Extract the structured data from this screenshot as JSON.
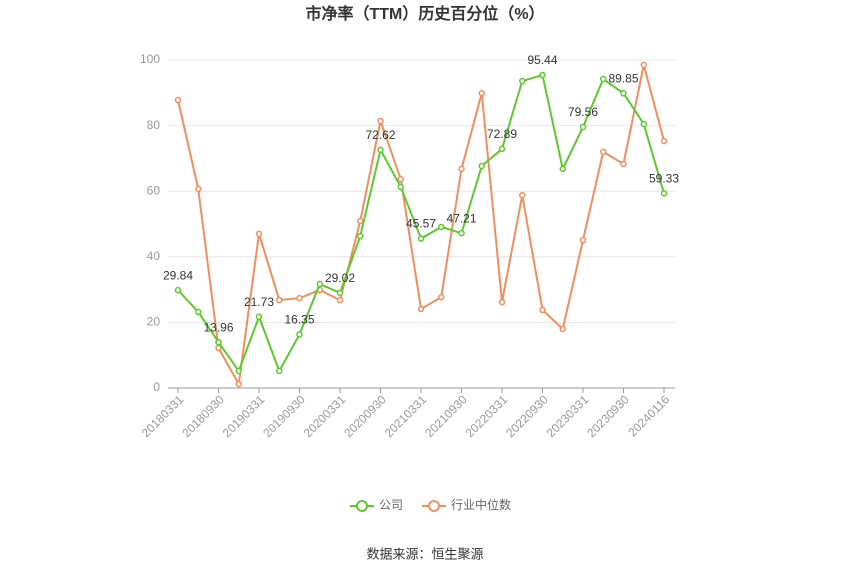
{
  "chart_data": {
    "type": "line",
    "title": "市净率（TTM）历史百分位（%）",
    "categories": [
      "20180331",
      null,
      "20180930",
      null,
      "20190331",
      null,
      "20190930",
      null,
      "20200331",
      null,
      "20200930",
      null,
      "20210331",
      null,
      "20210930",
      null,
      "20220331",
      null,
      "20220930",
      null,
      "20230331",
      null,
      "20230930",
      null,
      "20240116"
    ],
    "series": [
      {
        "name": "公司",
        "color": "#5ec92e",
        "values": [
          29.84,
          23.2,
          13.96,
          5.2,
          21.73,
          5.2,
          16.35,
          31.7,
          29.02,
          46.3,
          72.62,
          61.3,
          45.57,
          49.1,
          47.21,
          67.7,
          72.89,
          93.6,
          95.44,
          66.8,
          79.56,
          94.2,
          89.85,
          80.5,
          59.33
        ]
      },
      {
        "name": "行业中位数",
        "color": "#f28e5e",
        "values": [
          87.8,
          60.7,
          12.2,
          1.2,
          47,
          26.8,
          27.4,
          29.9,
          26.8,
          50.9,
          81.4,
          63.7,
          24.1,
          27.7,
          66.8,
          89.9,
          26.2,
          58.8,
          23.8,
          18,
          45.1,
          72,
          68.3,
          98.5,
          75.3
        ]
      }
    ],
    "ylim": [
      0,
      100
    ],
    "yticks": [
      0,
      20,
      40,
      60,
      80,
      100
    ],
    "grid": true,
    "source": "数据来源：恒生聚源"
  }
}
